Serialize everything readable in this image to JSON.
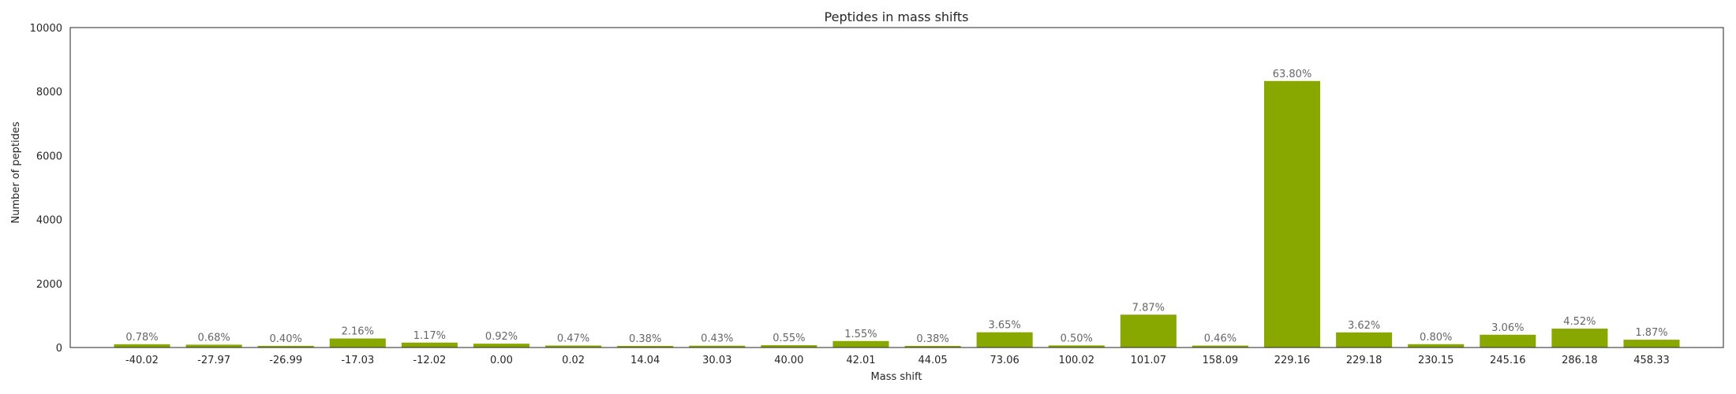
{
  "chart_data": {
    "type": "bar",
    "title": "Peptides in mass shifts",
    "xlabel": "Mass shift",
    "ylabel": "Number of peptides",
    "ylim": [
      0,
      10000
    ],
    "yticks": [
      0,
      2000,
      4000,
      6000,
      8000,
      10000
    ],
    "grid": false,
    "bar_color": "#88a800",
    "categories": [
      "-40.02",
      "-27.97",
      "-26.99",
      "-17.03",
      "-12.02",
      "0.00",
      "0.02",
      "14.04",
      "30.03",
      "40.00",
      "42.01",
      "44.05",
      "73.06",
      "100.02",
      "101.07",
      "158.09",
      "229.16",
      "229.18",
      "230.15",
      "245.16",
      "286.18",
      "458.33"
    ],
    "values": [
      102,
      89,
      52,
      282,
      153,
      120,
      61,
      50,
      56,
      72,
      202,
      50,
      476,
      65,
      1027,
      60,
      8330,
      472,
      104,
      399,
      590,
      244
    ],
    "data_labels": [
      "0.78%",
      "0.68%",
      "0.40%",
      "2.16%",
      "1.17%",
      "0.92%",
      "0.47%",
      "0.38%",
      "0.43%",
      "0.55%",
      "1.55%",
      "0.38%",
      "3.65%",
      "0.50%",
      "7.87%",
      "0.46%",
      "63.80%",
      "3.62%",
      "0.80%",
      "3.06%",
      "4.52%",
      "1.87%"
    ]
  }
}
